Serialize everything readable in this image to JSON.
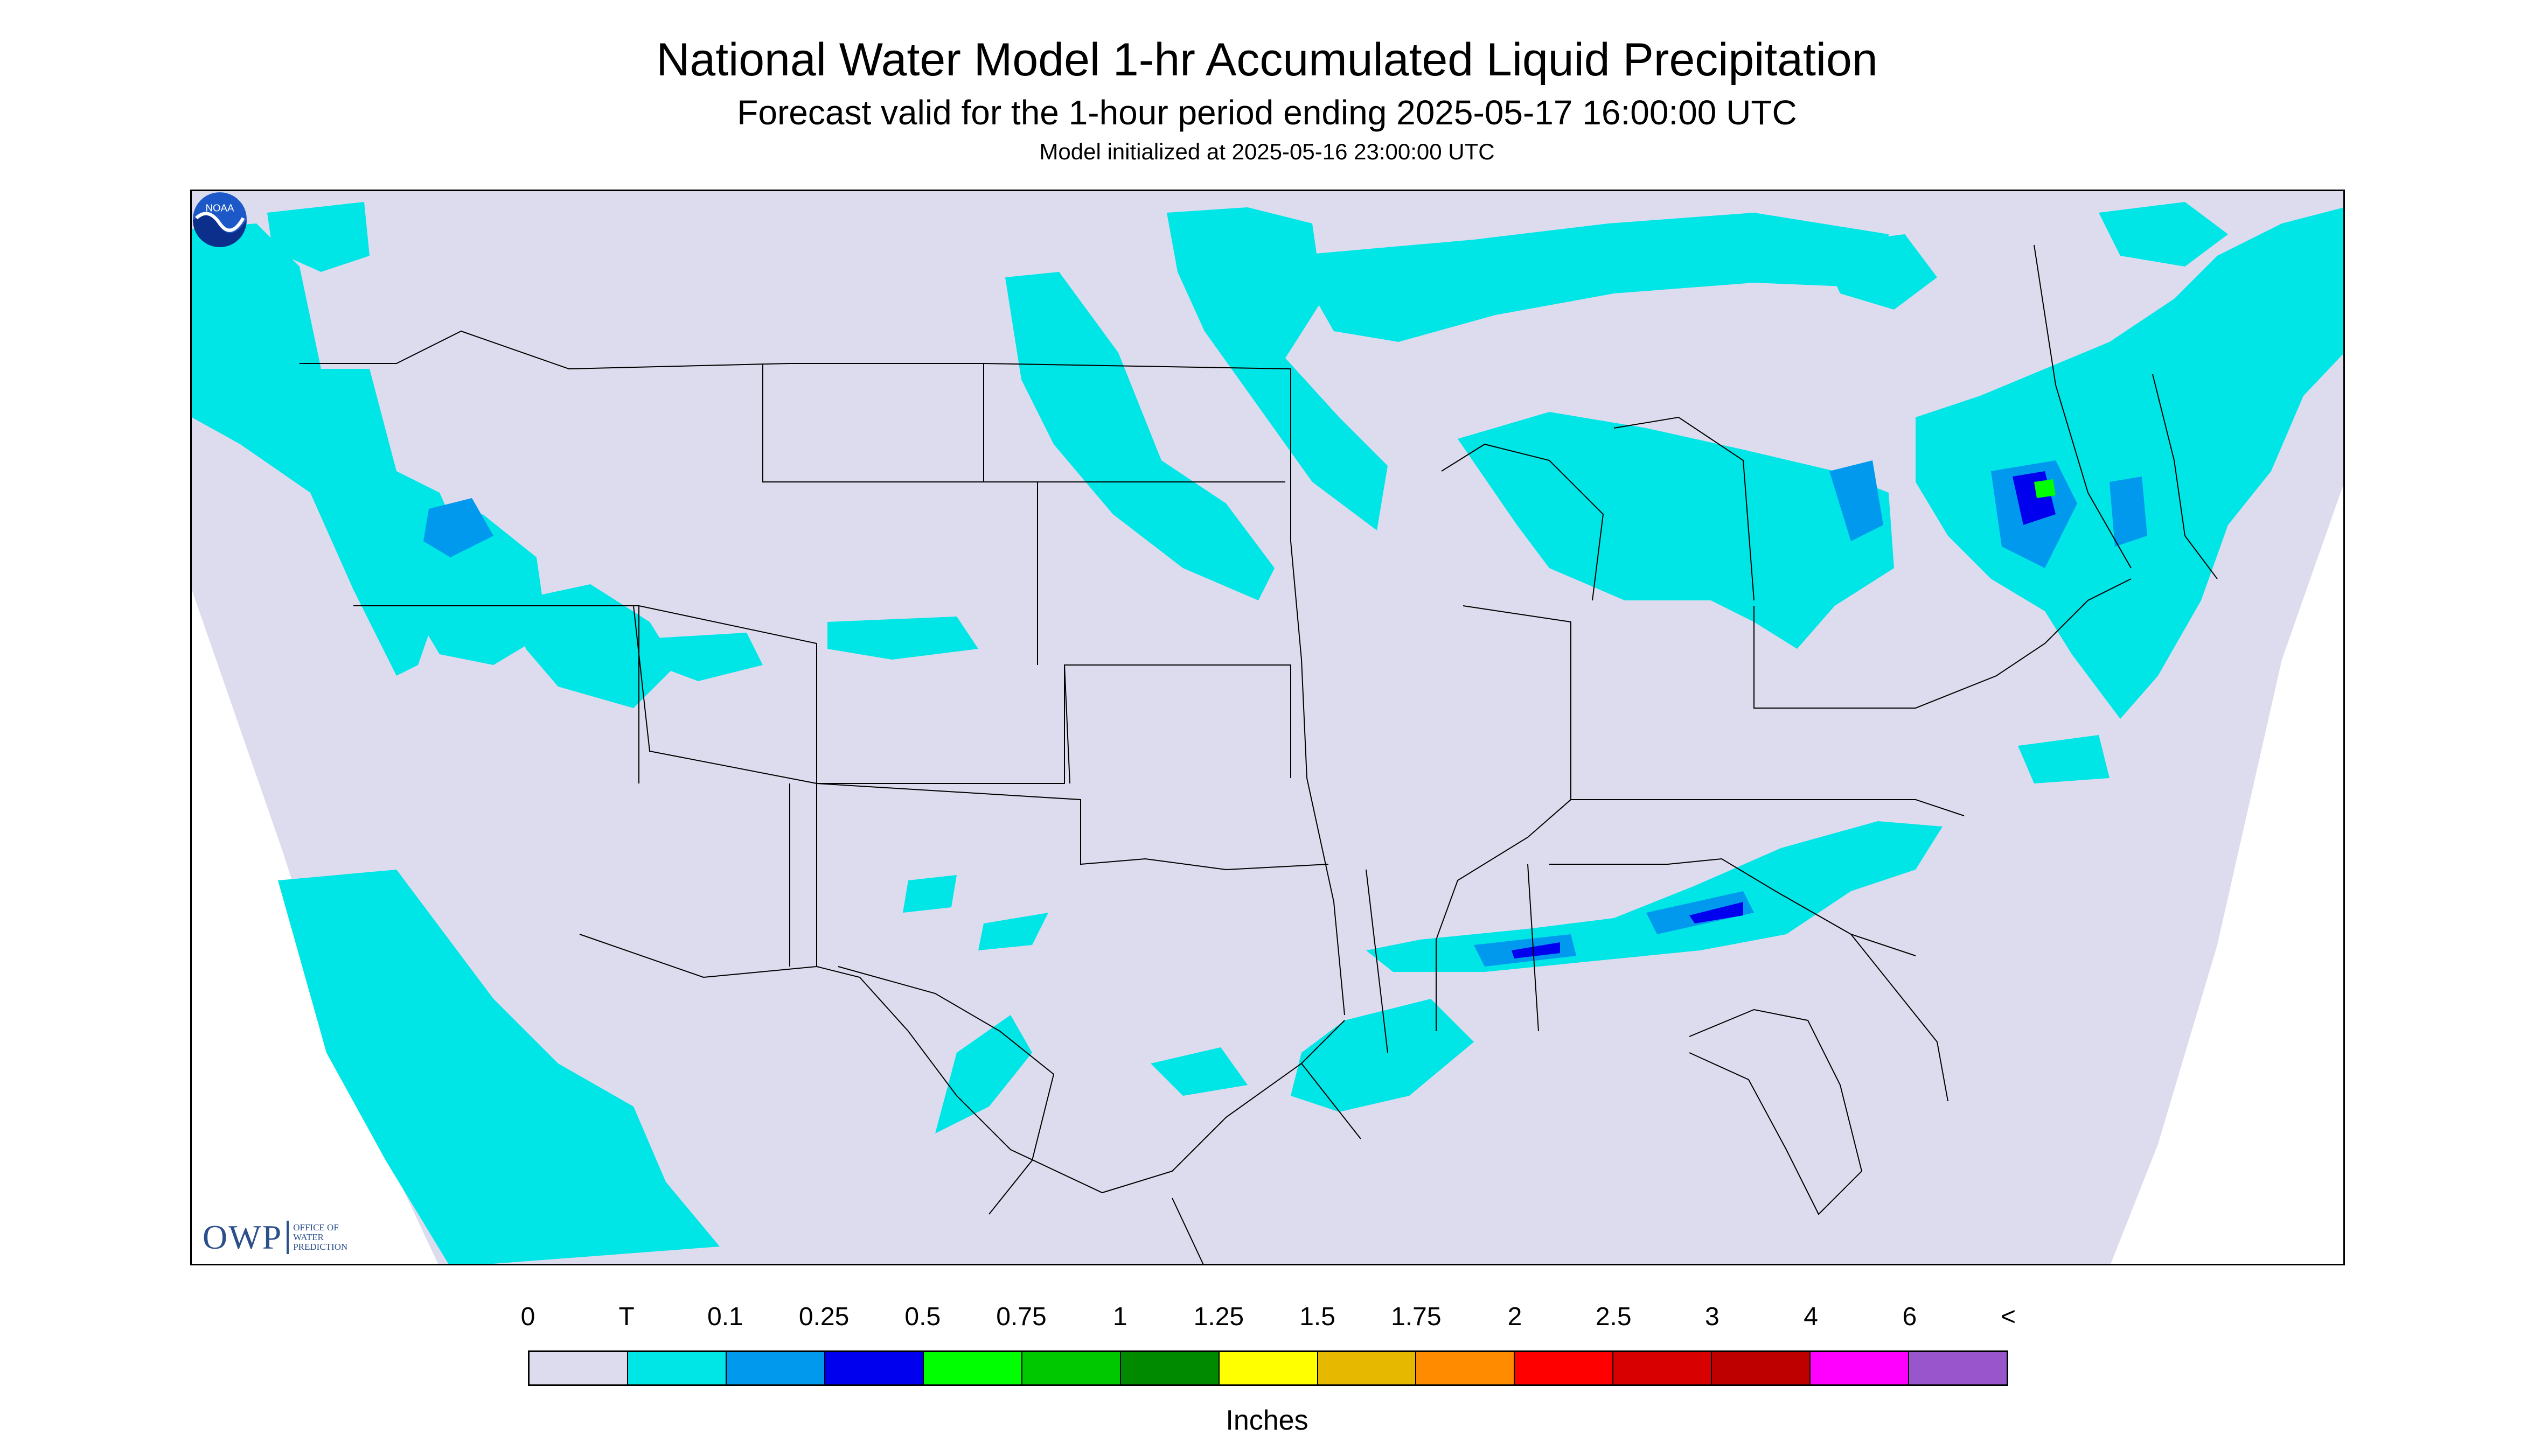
{
  "header": {
    "title": "National Water Model 1-hr Accumulated Liquid Precipitation",
    "subtitle": "Forecast valid for the 1-hour period ending 2025-05-17 16:00:00 UTC",
    "init": "Model initialized at 2025-05-16 23:00:00 UTC"
  },
  "map": {
    "background_color": "#dcdcee",
    "outside_domain_color": "#ffffff",
    "precip_light_color": "#00e5e5",
    "precip_medium_color": "#0099ee",
    "precip_heavy_color": "#0000ee",
    "precip_peak_color": "#00ff00",
    "boundary_color": "#000000"
  },
  "logos": {
    "owp_abbr": "OWP",
    "owp_line1": "OFFICE OF",
    "owp_line2": "WATER",
    "owp_line3": "PREDICTION",
    "noaa_text": "NOAA",
    "noaa_icon": "noaa-logo-icon"
  },
  "legend": {
    "labels": [
      "0",
      "T",
      "0.1",
      "0.25",
      "0.5",
      "0.75",
      "1",
      "1.25",
      "1.5",
      "1.75",
      "2",
      "2.5",
      "3",
      "4",
      "6",
      "<"
    ],
    "colors": [
      "#dcdcee",
      "#00e5e5",
      "#0099ee",
      "#0000ee",
      "#00ff00",
      "#00c800",
      "#008a00",
      "#ffff00",
      "#e6b800",
      "#ff8c00",
      "#ff0000",
      "#d80000",
      "#bf0000",
      "#ff00ff",
      "#9955cc"
    ],
    "units": "Inches"
  }
}
